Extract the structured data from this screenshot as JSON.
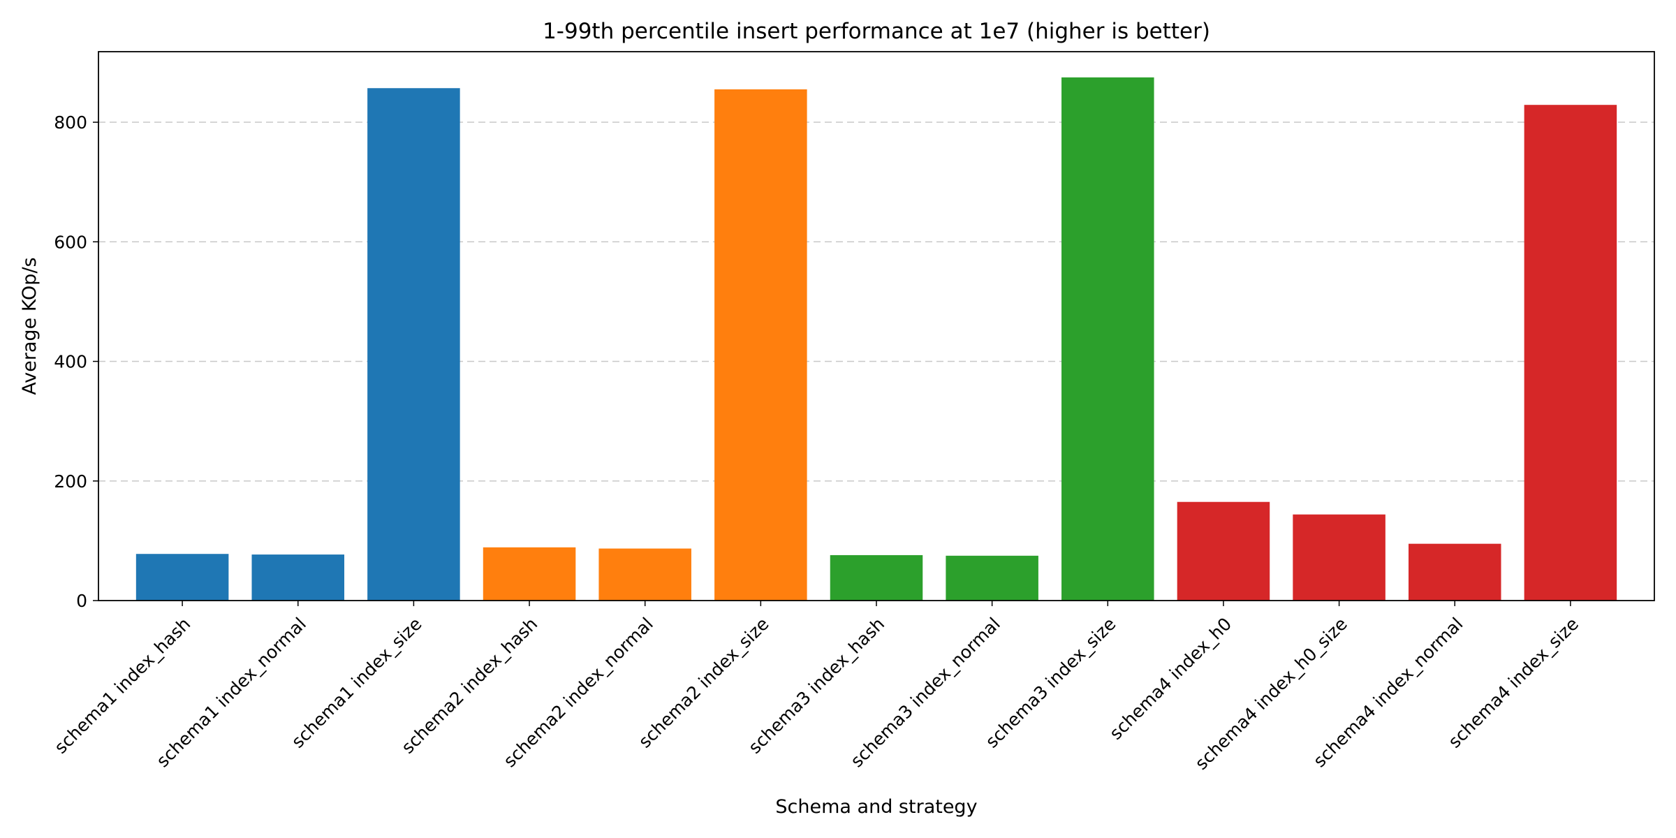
{
  "chart_data": {
    "type": "bar",
    "title": "1-99th percentile insert performance at 1e7 (higher is better)",
    "xlabel": "Schema and strategy",
    "ylabel": "Average KOp/s",
    "ylim": [
      0,
      918
    ],
    "yticks": [
      0,
      200,
      400,
      600,
      800
    ],
    "grid": "y-dashed",
    "categories": [
      "schema1 index_hash",
      "schema1 index_normal",
      "schema1 index_size",
      "schema2 index_hash",
      "schema2 index_normal",
      "schema2 index_size",
      "schema3 index_hash",
      "schema3 index_normal",
      "schema3 index_size",
      "schema4 index_h0",
      "schema4 index_h0_size",
      "schema4 index_normal",
      "schema4 index_size"
    ],
    "values": [
      78,
      77,
      857,
      89,
      87,
      855,
      76,
      75,
      875,
      165,
      144,
      95,
      829
    ],
    "colors": [
      "#1f77b4",
      "#1f77b4",
      "#1f77b4",
      "#ff7f0e",
      "#ff7f0e",
      "#ff7f0e",
      "#2ca02c",
      "#2ca02c",
      "#2ca02c",
      "#d62728",
      "#d62728",
      "#d62728",
      "#d62728"
    ]
  }
}
